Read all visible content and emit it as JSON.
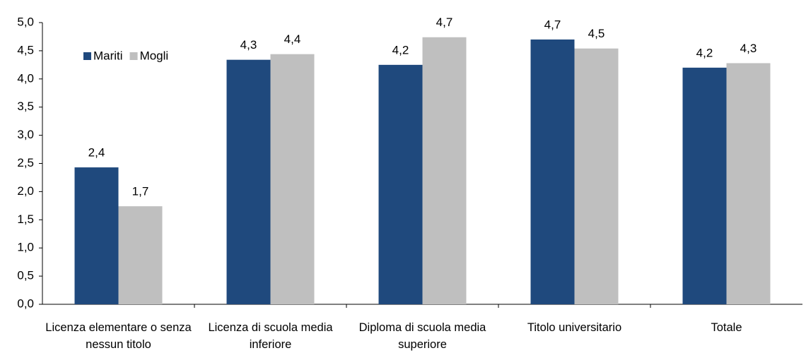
{
  "chart_data": {
    "type": "bar",
    "categories": [
      "Licenza elementare o senza nessun titolo",
      "Licenza di scuola media inferiore",
      "Diploma di scuola media superiore",
      "Titolo universitario",
      "Totale"
    ],
    "series": [
      {
        "name": "Mariti",
        "color": "#1f497d",
        "values": [
          2.43,
          4.34,
          4.25,
          4.7,
          4.2
        ],
        "value_labels": [
          "2,4",
          "4,3",
          "4,2",
          "4,7",
          "4,2"
        ]
      },
      {
        "name": "Mogli",
        "color": "#bfbfbf",
        "values": [
          1.74,
          4.44,
          4.74,
          4.54,
          4.28
        ],
        "value_labels": [
          "1,7",
          "4,4",
          "4,7",
          "4,5",
          "4,3"
        ]
      }
    ],
    "ylim": [
      0,
      5
    ],
    "yticks": [
      {
        "value": 0,
        "label": "0,0"
      },
      {
        "value": 0.5,
        "label": "0,5"
      },
      {
        "value": 1,
        "label": "1,0"
      },
      {
        "value": 1.5,
        "label": "1,5"
      },
      {
        "value": 2,
        "label": "2,0"
      },
      {
        "value": 2.5,
        "label": "2,5"
      },
      {
        "value": 3,
        "label": "3,0"
      },
      {
        "value": 3.5,
        "label": "3,5"
      },
      {
        "value": 4,
        "label": "4,0"
      },
      {
        "value": 4.5,
        "label": "4,5"
      },
      {
        "value": 5,
        "label": "5,0"
      }
    ],
    "grid": false,
    "legend": "upper-left"
  }
}
